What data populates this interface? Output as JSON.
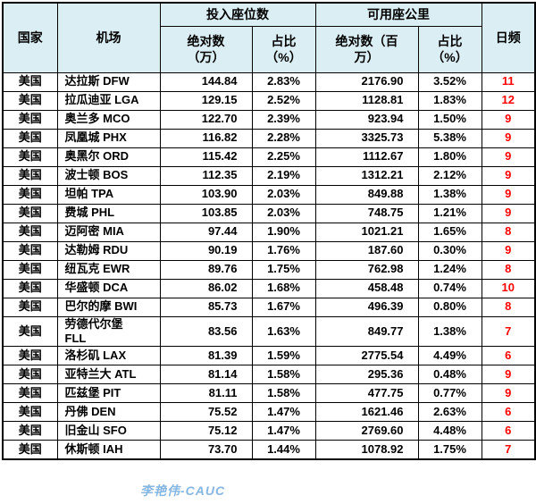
{
  "colors": {
    "header_bg": "#DAEEF3",
    "freq_color": "#FF0000",
    "watermark_color": "#86B7E2",
    "border_color": "#000000"
  },
  "headers": {
    "country": "国家",
    "airport": "机场",
    "seats_group": "投入座位数",
    "ask_group": "可用座公里",
    "seats_abs": "绝对数\n（万）",
    "seats_pct": "占比\n（%）",
    "ask_abs": "绝对数（百\n万）",
    "ask_pct": "占比\n（%）",
    "daily_freq": "日频"
  },
  "watermark": {
    "text": "李艳伟-CAUC"
  },
  "chart_data": {
    "type": "table",
    "header_groups": {
      "seats": "投入座位数",
      "ask": "可用座公里"
    },
    "columns": [
      "国家",
      "机场",
      "绝对数（万）",
      "占比（%）",
      "绝对数（百万）",
      "占比（%）",
      "日频"
    ],
    "rows": [
      {
        "country": "美国",
        "airport": "达拉斯 DFW",
        "seats_abs": "144.84",
        "seats_pct": "2.83%",
        "ask_abs": "2176.90",
        "ask_pct": "3.52%",
        "freq": "11"
      },
      {
        "country": "美国",
        "airport": "拉瓜迪亚 LGA",
        "seats_abs": "129.15",
        "seats_pct": "2.52%",
        "ask_abs": "1128.81",
        "ask_pct": "1.83%",
        "freq": "12"
      },
      {
        "country": "美国",
        "airport": "奥兰多 MCO",
        "seats_abs": "122.70",
        "seats_pct": "2.39%",
        "ask_abs": "923.94",
        "ask_pct": "1.50%",
        "freq": "9"
      },
      {
        "country": "美国",
        "airport": "凤凰城 PHX",
        "seats_abs": "116.82",
        "seats_pct": "2.28%",
        "ask_abs": "3325.73",
        "ask_pct": "5.38%",
        "freq": "9"
      },
      {
        "country": "美国",
        "airport": "奥黑尔 ORD",
        "seats_abs": "115.42",
        "seats_pct": "2.25%",
        "ask_abs": "1112.67",
        "ask_pct": "1.80%",
        "freq": "9"
      },
      {
        "country": "美国",
        "airport": "波士顿 BOS",
        "seats_abs": "112.35",
        "seats_pct": "2.19%",
        "ask_abs": "1312.21",
        "ask_pct": "2.12%",
        "freq": "9"
      },
      {
        "country": "美国",
        "airport": "坦帕 TPA",
        "seats_abs": "103.90",
        "seats_pct": "2.03%",
        "ask_abs": "849.88",
        "ask_pct": "1.38%",
        "freq": "9"
      },
      {
        "country": "美国",
        "airport": "费城 PHL",
        "seats_abs": "103.85",
        "seats_pct": "2.03%",
        "ask_abs": "748.75",
        "ask_pct": "1.21%",
        "freq": "9"
      },
      {
        "country": "美国",
        "airport": "迈阿密 MIA",
        "seats_abs": "97.44",
        "seats_pct": "1.90%",
        "ask_abs": "1021.21",
        "ask_pct": "1.65%",
        "freq": "8"
      },
      {
        "country": "美国",
        "airport": "达勒姆 RDU",
        "seats_abs": "90.19",
        "seats_pct": "1.76%",
        "ask_abs": "187.60",
        "ask_pct": "0.30%",
        "freq": "9"
      },
      {
        "country": "美国",
        "airport": "纽瓦克 EWR",
        "seats_abs": "89.76",
        "seats_pct": "1.75%",
        "ask_abs": "762.98",
        "ask_pct": "1.24%",
        "freq": "8"
      },
      {
        "country": "美国",
        "airport": "华盛顿 DCA",
        "seats_abs": "86.02",
        "seats_pct": "1.68%",
        "ask_abs": "458.48",
        "ask_pct": "0.74%",
        "freq": "10"
      },
      {
        "country": "美国",
        "airport": "巴尔的摩 BWI",
        "seats_abs": "85.73",
        "seats_pct": "1.67%",
        "ask_abs": "496.39",
        "ask_pct": "0.80%",
        "freq": "8"
      },
      {
        "country": "美国",
        "airport": "劳德代尔堡\nFLL",
        "seats_abs": "83.56",
        "seats_pct": "1.63%",
        "ask_abs": "849.77",
        "ask_pct": "1.38%",
        "freq": "7"
      },
      {
        "country": "美国",
        "airport": "洛杉矶 LAX",
        "seats_abs": "81.39",
        "seats_pct": "1.59%",
        "ask_abs": "2775.54",
        "ask_pct": "4.49%",
        "freq": "6"
      },
      {
        "country": "美国",
        "airport": "亚特兰大 ATL",
        "seats_abs": "81.14",
        "seats_pct": "1.58%",
        "ask_abs": "295.36",
        "ask_pct": "0.48%",
        "freq": "9"
      },
      {
        "country": "美国",
        "airport": "匹兹堡 PIT",
        "seats_abs": "81.11",
        "seats_pct": "1.58%",
        "ask_abs": "477.75",
        "ask_pct": "0.77%",
        "freq": "9"
      },
      {
        "country": "美国",
        "airport": "丹佛 DEN",
        "seats_abs": "75.52",
        "seats_pct": "1.47%",
        "ask_abs": "1621.46",
        "ask_pct": "2.63%",
        "freq": "6"
      },
      {
        "country": "美国",
        "airport": "旧金山 SFO",
        "seats_abs": "75.12",
        "seats_pct": "1.47%",
        "ask_abs": "2769.60",
        "ask_pct": "4.48%",
        "freq": "6"
      },
      {
        "country": "美国",
        "airport": "休斯顿 IAH",
        "seats_abs": "73.70",
        "seats_pct": "1.44%",
        "ask_abs": "1078.92",
        "ask_pct": "1.75%",
        "freq": "7"
      }
    ]
  }
}
